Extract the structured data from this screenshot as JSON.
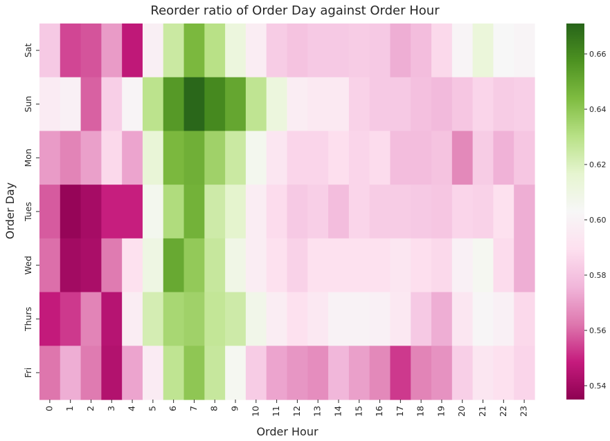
{
  "chart_data": {
    "type": "heatmap",
    "title": "Reorder ratio of Order Day against Order Hour",
    "xlabel": "Order Hour",
    "ylabel": "Order Day",
    "x": [
      "0",
      "1",
      "2",
      "3",
      "4",
      "5",
      "6",
      "7",
      "8",
      "9",
      "10",
      "11",
      "12",
      "13",
      "14",
      "15",
      "16",
      "17",
      "18",
      "19",
      "20",
      "21",
      "22",
      "23"
    ],
    "y": [
      "Sat",
      "Sun",
      "Mon",
      "Tues",
      "Wed",
      "Thurs",
      "Fri"
    ],
    "values": [
      [
        0.582,
        0.555,
        0.557,
        0.57,
        0.547,
        0.598,
        0.625,
        0.645,
        0.63,
        0.612,
        0.597,
        0.583,
        0.58,
        0.582,
        0.582,
        0.583,
        0.582,
        0.574,
        0.578,
        0.587,
        0.601,
        0.613,
        0.603,
        0.601
      ],
      [
        0.596,
        0.599,
        0.559,
        0.584,
        0.601,
        0.629,
        0.655,
        0.67,
        0.66,
        0.651,
        0.628,
        0.612,
        0.597,
        0.595,
        0.595,
        0.585,
        0.582,
        0.582,
        0.579,
        0.577,
        0.581,
        0.586,
        0.583,
        0.584
      ],
      [
        0.57,
        0.565,
        0.571,
        0.587,
        0.572,
        0.614,
        0.645,
        0.648,
        0.636,
        0.625,
        0.606,
        0.593,
        0.586,
        0.586,
        0.589,
        0.586,
        0.588,
        0.578,
        0.578,
        0.58,
        0.566,
        0.583,
        0.575,
        0.581
      ],
      [
        0.558,
        0.537,
        0.541,
        0.549,
        0.549,
        0.606,
        0.632,
        0.647,
        0.624,
        0.617,
        0.597,
        0.588,
        0.582,
        0.584,
        0.578,
        0.586,
        0.583,
        0.583,
        0.582,
        0.581,
        0.586,
        0.585,
        0.59,
        0.574
      ],
      [
        0.561,
        0.54,
        0.542,
        0.563,
        0.59,
        0.61,
        0.65,
        0.639,
        0.626,
        0.609,
        0.597,
        0.59,
        0.585,
        0.59,
        0.59,
        0.59,
        0.59,
        0.593,
        0.589,
        0.587,
        0.599,
        0.605,
        0.588,
        0.574
      ],
      [
        0.548,
        0.553,
        0.565,
        0.545,
        0.597,
        0.622,
        0.634,
        0.636,
        0.627,
        0.624,
        0.608,
        0.597,
        0.59,
        0.594,
        0.6,
        0.6,
        0.599,
        0.594,
        0.582,
        0.574,
        0.593,
        0.602,
        0.599,
        0.587
      ],
      [
        0.562,
        0.574,
        0.563,
        0.544,
        0.572,
        0.596,
        0.628,
        0.64,
        0.626,
        0.605,
        0.583,
        0.572,
        0.569,
        0.567,
        0.576,
        0.571,
        0.566,
        0.553,
        0.565,
        0.568,
        0.584,
        0.593,
        0.59,
        0.586
      ]
    ],
    "colorbar": {
      "ticks": [
        0.54,
        0.56,
        0.58,
        0.6,
        0.62,
        0.64,
        0.66
      ],
      "range": [
        0.535,
        0.671
      ]
    },
    "colors": {
      "stops": [
        {
          "v": 0.0,
          "c": "#8e0152"
        },
        {
          "v": 0.1,
          "c": "#c51b7d"
        },
        {
          "v": 0.2,
          "c": "#de77ae"
        },
        {
          "v": 0.3,
          "c": "#f1b6da"
        },
        {
          "v": 0.4,
          "c": "#fde0ef"
        },
        {
          "v": 0.5,
          "c": "#f7f7f7"
        },
        {
          "v": 0.6,
          "c": "#e6f5d0"
        },
        {
          "v": 0.7,
          "c": "#b8e186"
        },
        {
          "v": 0.8,
          "c": "#7fbc41"
        },
        {
          "v": 0.9,
          "c": "#4d9221"
        },
        {
          "v": 1.0,
          "c": "#276419"
        }
      ],
      "text": "#262626"
    }
  }
}
